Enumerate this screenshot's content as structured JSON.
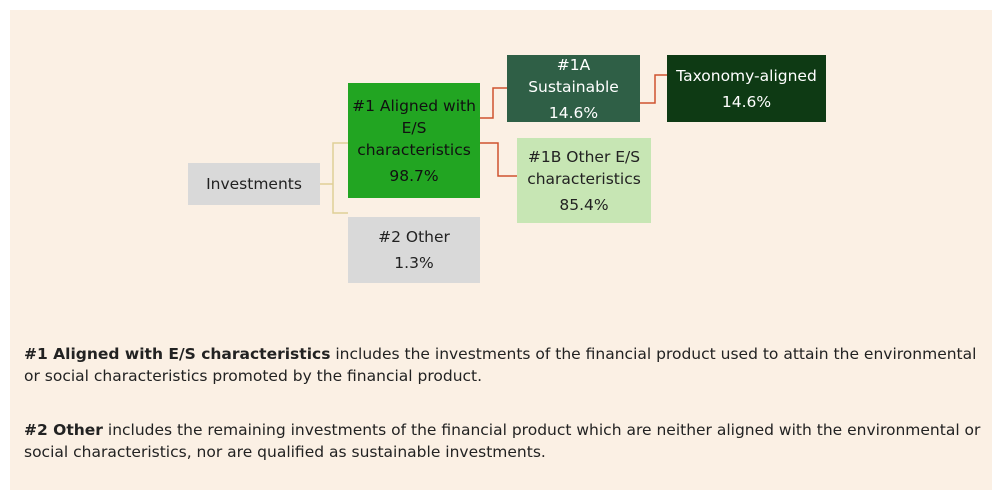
{
  "nodes": [
    {
      "label": "Investments"
    },
    {
      "label": "#1 Aligned with E/S characteristics",
      "value": "98.7%"
    },
    {
      "label": "#2 Other",
      "value": "1.3%"
    },
    {
      "label": "#1A Sustainable",
      "value": "14.6%"
    },
    {
      "label": "Taxonomy-aligned",
      "value": "14.6%"
    },
    {
      "label": "#1B Other E/S characteristics",
      "value": "85.4%"
    }
  ],
  "notes": [
    {
      "term": "#1 Aligned with E/S characteristics",
      "text": "includes the investments of the financial product used to attain the environmental or social characteristics promoted by the financial product."
    },
    {
      "term": "#2 Other",
      "text": "includes the remaining investments of the financial product which are neither aligned with the environmental or social characteristics, nor are qualified as sustainable investments."
    }
  ]
}
